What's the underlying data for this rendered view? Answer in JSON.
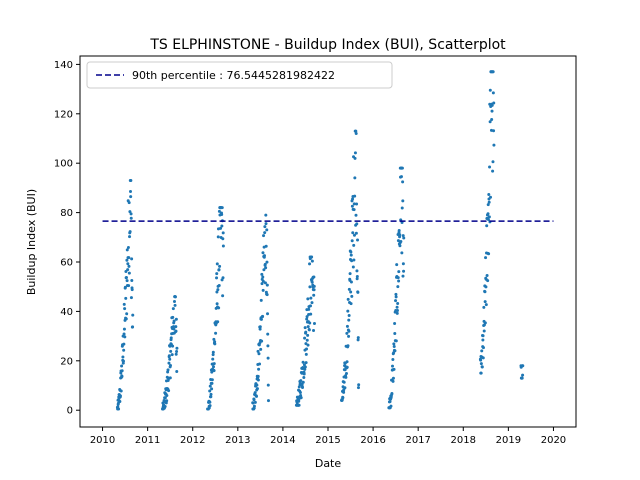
{
  "chart_data": {
    "type": "scatter",
    "title": "TS ELPHINSTONE - Buildup Index (BUI), Scatterplot",
    "xlabel": "Date",
    "ylabel": "Buildup Index (BUI)",
    "xlim": [
      2009.5,
      2020.5
    ],
    "ylim": [
      -6.8,
      143.4
    ],
    "x_ticks": [
      "2010",
      "2011",
      "2012",
      "2013",
      "2014",
      "2015",
      "2016",
      "2017",
      "2018",
      "2019",
      "2020"
    ],
    "y_ticks": [
      0,
      20,
      40,
      60,
      80,
      100,
      120,
      140
    ],
    "grid": false,
    "legend_position": "top-left",
    "reference_line": {
      "label": "90th percentile : 76.5445281982422",
      "value": 76.5445281982422,
      "x_range": [
        2010.0,
        2020.0
      ],
      "color": "#00008b",
      "style": "dashed"
    },
    "series_color": "#1f77b4",
    "seasons": [
      {
        "start": 2010.33,
        "end": 2010.67,
        "peak": 93.0,
        "tail": 30.0,
        "base": 0.5
      },
      {
        "start": 2011.33,
        "end": 2011.65,
        "peak": 46.0,
        "tail": 24.0,
        "base": 0.5
      },
      {
        "start": 2012.33,
        "end": 2012.68,
        "peak": 82.0,
        "tail": 60.0,
        "base": 0.5
      },
      {
        "start": 2013.33,
        "end": 2013.68,
        "peak": 79.0,
        "tail": 3.0,
        "base": 0.5
      },
      {
        "start": 2014.3,
        "end": 2014.7,
        "peak": 62.0,
        "tail": 40.0,
        "base": 2.0
      },
      {
        "start": 2015.3,
        "end": 2015.68,
        "peak": 113.0,
        "tail": 8.0,
        "base": 4.0
      },
      {
        "start": 2016.35,
        "end": 2016.68,
        "peak": 98.0,
        "tail": 55.0,
        "base": 1.0
      },
      {
        "start": 2018.38,
        "end": 2018.68,
        "peak": 137.0,
        "tail": 108.0,
        "base": 15.0
      },
      {
        "start": 2019.28,
        "end": 2019.32,
        "peak": 18.0,
        "tail": 18.0,
        "base": 13.0
      }
    ]
  }
}
